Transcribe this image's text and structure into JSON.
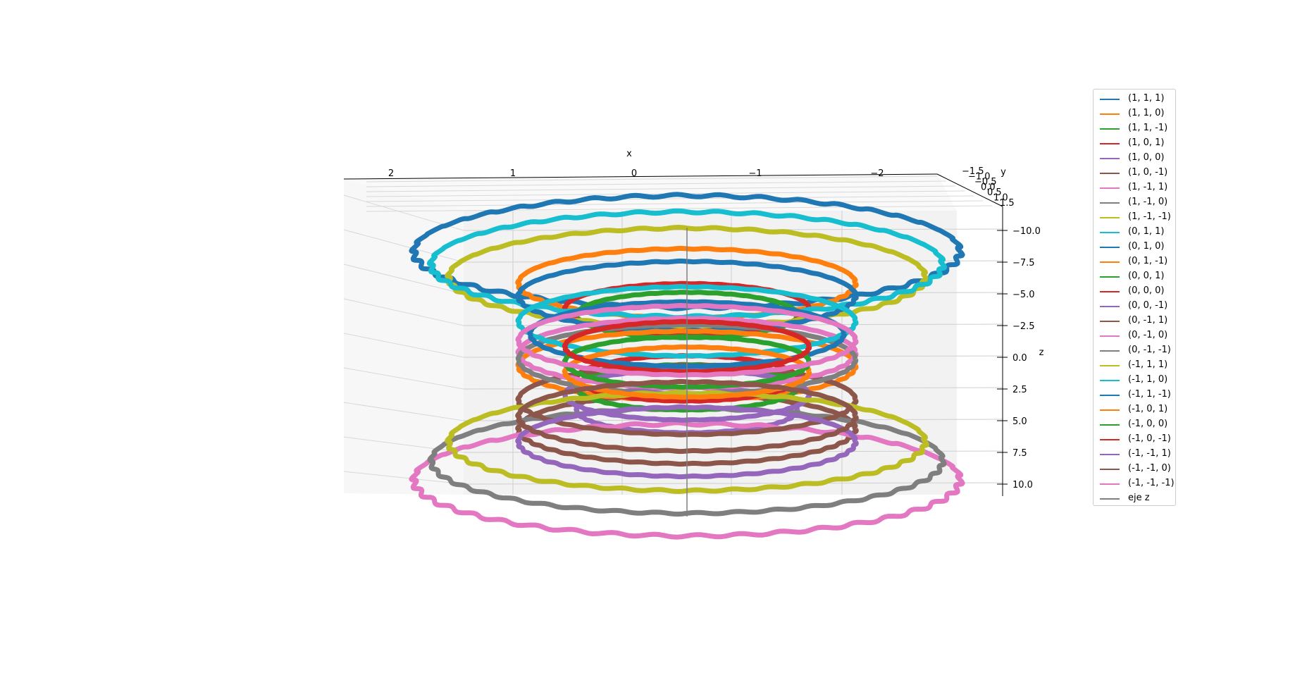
{
  "chart_data": {
    "type": "line",
    "projection": "3d",
    "xlabel": "x",
    "ylabel": "y",
    "zlabel": "z",
    "xlim": [
      -2.7,
      2.7
    ],
    "ylim": [
      -1.5,
      1.5
    ],
    "zlim": [
      -10.5,
      10.5
    ],
    "z_inverted": true,
    "x_ticks": [
      "2",
      "1",
      "0",
      "−1",
      "−2"
    ],
    "x_tick_values": [
      2,
      1,
      0,
      -1,
      -2
    ],
    "y_ticks": [
      "−1.5",
      "−1.0",
      "−0.5",
      "0.0",
      "0.5",
      "1.0",
      "1.5"
    ],
    "z_ticks": [
      "−10.0",
      "−7.5",
      "−5.0",
      "−2.5",
      "0.0",
      "2.5",
      "5.0",
      "7.5",
      "10.0"
    ],
    "z_tick_values": [
      -10,
      -7.5,
      -5,
      -2.5,
      0,
      2.5,
      5,
      7.5,
      10
    ],
    "grid": true,
    "legend_position": "right",
    "series": [
      {
        "name": "(1, 1, 1)",
        "color": "#1f77b4",
        "radius": 2.35,
        "z": -9.5,
        "wobble": 0.6
      },
      {
        "name": "(1, 1, 0)",
        "color": "#ff7f0e",
        "radius": 1.45,
        "z": -7.0,
        "wobble": 0.2
      },
      {
        "name": "(1, 1, -1)",
        "color": "#2ca02c",
        "radius": 0.95,
        "z": -4.5,
        "wobble": 0.1
      },
      {
        "name": "(1, 0, 1)",
        "color": "#d62728",
        "radius": 1.05,
        "z": -5.0,
        "wobble": 0.1
      },
      {
        "name": "(1, 0, 0)",
        "color": "#9467bd",
        "radius": 0.95,
        "z": 3.0,
        "wobble": 0.1
      },
      {
        "name": "(1, 0, -1)",
        "color": "#8c564b",
        "radius": 1.45,
        "z": 4.5,
        "wobble": 0.2
      },
      {
        "name": "(1, -1, 1)",
        "color": "#e377c2",
        "radius": 2.35,
        "z": 8.5,
        "wobble": 0.6
      },
      {
        "name": "(1, -1, 0)",
        "color": "#7f7f7f",
        "radius": 2.2,
        "z": 7.0,
        "wobble": 0.4
      },
      {
        "name": "(1, -1, -1)",
        "color": "#bcbd22",
        "radius": 2.05,
        "z": -7.5,
        "wobble": 0.4
      },
      {
        "name": "(0, 1, 1)",
        "color": "#17becf",
        "radius": 2.2,
        "z": -8.5,
        "wobble": 0.5
      },
      {
        "name": "(0, 1, 0)",
        "color": "#1f77b4",
        "radius": 1.45,
        "z": -6.0,
        "wobble": 0.2
      },
      {
        "name": "(0, 1, -1)",
        "color": "#ff7f0e",
        "radius": 1.45,
        "z": -0.5,
        "wobble": 0.15
      },
      {
        "name": "(0, 0, 1)",
        "color": "#2ca02c",
        "radius": 0.95,
        "z": 1.2,
        "wobble": 0.1
      },
      {
        "name": "(0, 0, 0)",
        "color": "#d62728",
        "radius": 0.95,
        "z": 0.5,
        "wobble": 0.1
      },
      {
        "name": "(0, 0, -1)",
        "color": "#9467bd",
        "radius": 1.05,
        "z": 1.8,
        "wobble": 0.1
      },
      {
        "name": "(0, -1, 1)",
        "color": "#8c564b",
        "radius": 1.45,
        "z": 2.2,
        "wobble": 0.15
      },
      {
        "name": "(0, -1, 0)",
        "color": "#e377c2",
        "radius": 1.45,
        "z": -1.5,
        "wobble": 0.15
      },
      {
        "name": "(0, -1, -1)",
        "color": "#7f7f7f",
        "radius": 1.45,
        "z": -1.0,
        "wobble": 0.1
      },
      {
        "name": "(-1, 1, 1)",
        "color": "#bcbd22",
        "radius": 2.05,
        "z": 5.5,
        "wobble": 0.4
      },
      {
        "name": "(-1, 1, 0)",
        "color": "#17becf",
        "radius": 1.45,
        "z": -4.0,
        "wobble": 0.15
      },
      {
        "name": "(-1, 1, -1)",
        "color": "#1f77b4",
        "radius": 1.35,
        "z": -3.0,
        "wobble": 0.1
      },
      {
        "name": "(-1, 0, 1)",
        "color": "#ff7f0e",
        "radius": 1.05,
        "z": 0.0,
        "wobble": 0.1
      },
      {
        "name": "(-1, 0, 0)",
        "color": "#2ca02c",
        "radius": 1.05,
        "z": -0.8,
        "wobble": 0.1
      },
      {
        "name": "(-1, 0, -1)",
        "color": "#d62728",
        "radius": 1.05,
        "z": -2.0,
        "wobble": 0.1
      },
      {
        "name": "(-1, -1, 1)",
        "color": "#9467bd",
        "radius": 1.45,
        "z": 5.5,
        "wobble": 0.2
      },
      {
        "name": "(-1, -1, 0)",
        "color": "#8c564b",
        "radius": 1.45,
        "z": 3.5,
        "wobble": 0.2
      },
      {
        "name": "(-1, -1, -1)",
        "color": "#e377c2",
        "radius": 1.45,
        "z": -2.5,
        "wobble": 0.15
      },
      {
        "name": "eje z",
        "color": "#7f7f7f",
        "line": "vertical",
        "z": [
          -10,
          10
        ]
      }
    ]
  }
}
